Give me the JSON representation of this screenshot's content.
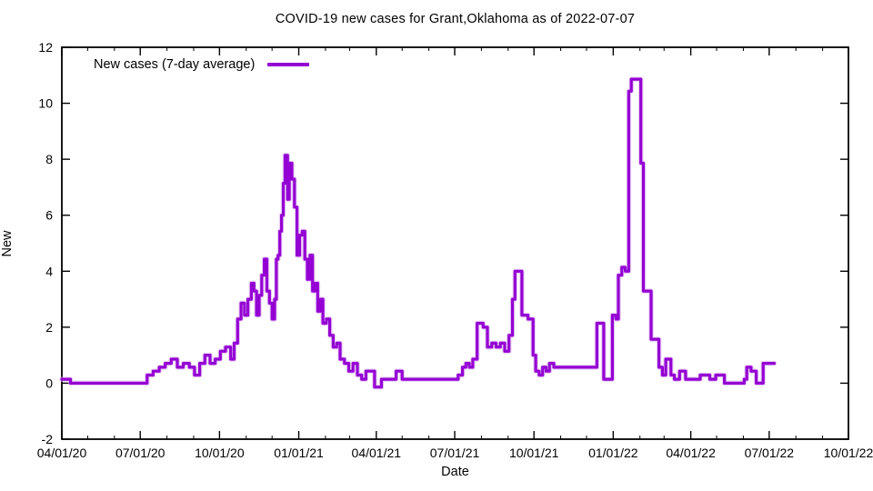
{
  "chart_data": {
    "type": "line",
    "line_style": "steps",
    "title": "COVID-19 new cases for Grant,Oklahoma as of 2022-07-07",
    "xlabel": "Date",
    "ylabel": "New",
    "ylim": [
      -2,
      12
    ],
    "y_ticks": [
      -2,
      0,
      2,
      4,
      6,
      8,
      10,
      12
    ],
    "x_range": [
      "2020-04-01",
      "2022-10-01"
    ],
    "x_ticks": [
      {
        "date": "2020-04-01",
        "label": "04/01/20"
      },
      {
        "date": "2020-07-01",
        "label": "07/01/20"
      },
      {
        "date": "2020-10-01",
        "label": "10/01/20"
      },
      {
        "date": "2021-01-01",
        "label": "01/01/21"
      },
      {
        "date": "2021-04-01",
        "label": "04/01/21"
      },
      {
        "date": "2021-07-01",
        "label": "07/01/21"
      },
      {
        "date": "2021-10-01",
        "label": "10/01/21"
      },
      {
        "date": "2022-01-01",
        "label": "01/01/22"
      },
      {
        "date": "2022-04-01",
        "label": "04/01/22"
      },
      {
        "date": "2022-07-01",
        "label": "07/01/22"
      },
      {
        "date": "2022-10-01",
        "label": "10/01/22"
      }
    ],
    "minor_tick_interval": "month",
    "grid": false,
    "legend_position": "top-left-inside",
    "colors": {
      "line": "#9400d3",
      "line_halo": "#dcaef0",
      "border": "#000000",
      "background": "#ffffff",
      "text": "#000000"
    },
    "series": [
      {
        "name": "New cases (7-day average)",
        "color": "#9400d3",
        "points": [
          [
            "2020-04-01",
            0.14
          ],
          [
            "2020-04-11",
            0.0
          ],
          [
            "2020-07-09",
            0.29
          ],
          [
            "2020-07-16",
            0.43
          ],
          [
            "2020-07-23",
            0.57
          ],
          [
            "2020-07-30",
            0.71
          ],
          [
            "2020-08-06",
            0.86
          ],
          [
            "2020-08-13",
            0.57
          ],
          [
            "2020-08-20",
            0.71
          ],
          [
            "2020-08-27",
            0.57
          ],
          [
            "2020-09-02",
            0.29
          ],
          [
            "2020-09-08",
            0.71
          ],
          [
            "2020-09-14",
            1.0
          ],
          [
            "2020-09-20",
            0.71
          ],
          [
            "2020-09-26",
            0.86
          ],
          [
            "2020-10-02",
            1.14
          ],
          [
            "2020-10-08",
            1.29
          ],
          [
            "2020-10-14",
            0.86
          ],
          [
            "2020-10-18",
            1.43
          ],
          [
            "2020-10-22",
            2.29
          ],
          [
            "2020-10-26",
            2.86
          ],
          [
            "2020-10-30",
            2.43
          ],
          [
            "2020-11-03",
            3.0
          ],
          [
            "2020-11-07",
            3.57
          ],
          [
            "2020-11-10",
            3.29
          ],
          [
            "2020-11-13",
            2.43
          ],
          [
            "2020-11-16",
            3.14
          ],
          [
            "2020-11-19",
            3.86
          ],
          [
            "2020-11-22",
            4.43
          ],
          [
            "2020-11-25",
            3.29
          ],
          [
            "2020-11-28",
            2.86
          ],
          [
            "2020-12-01",
            2.29
          ],
          [
            "2020-12-04",
            3.0
          ],
          [
            "2020-12-06",
            4.43
          ],
          [
            "2020-12-08",
            4.57
          ],
          [
            "2020-12-10",
            5.43
          ],
          [
            "2020-12-12",
            6.0
          ],
          [
            "2020-12-14",
            7.14
          ],
          [
            "2020-12-16",
            8.14
          ],
          [
            "2020-12-19",
            6.57
          ],
          [
            "2020-12-21",
            7.86
          ],
          [
            "2020-12-24",
            7.29
          ],
          [
            "2020-12-27",
            6.29
          ],
          [
            "2020-12-30",
            4.57
          ],
          [
            "2021-01-02",
            5.29
          ],
          [
            "2021-01-05",
            5.43
          ],
          [
            "2021-01-08",
            4.43
          ],
          [
            "2021-01-11",
            3.71
          ],
          [
            "2021-01-14",
            4.57
          ],
          [
            "2021-01-17",
            3.29
          ],
          [
            "2021-01-20",
            3.57
          ],
          [
            "2021-01-23",
            2.57
          ],
          [
            "2021-01-26",
            3.0
          ],
          [
            "2021-01-29",
            2.14
          ],
          [
            "2021-02-02",
            2.29
          ],
          [
            "2021-02-06",
            1.71
          ],
          [
            "2021-02-10",
            1.29
          ],
          [
            "2021-02-14",
            1.43
          ],
          [
            "2021-02-18",
            0.86
          ],
          [
            "2021-02-23",
            0.71
          ],
          [
            "2021-02-28",
            0.43
          ],
          [
            "2021-03-05",
            0.71
          ],
          [
            "2021-03-10",
            0.29
          ],
          [
            "2021-03-15",
            0.14
          ],
          [
            "2021-03-20",
            0.43
          ],
          [
            "2021-03-30",
            -0.14
          ],
          [
            "2021-04-07",
            0.14
          ],
          [
            "2021-04-24",
            0.43
          ],
          [
            "2021-05-01",
            0.14
          ],
          [
            "2021-07-05",
            0.29
          ],
          [
            "2021-07-10",
            0.57
          ],
          [
            "2021-07-14",
            0.71
          ],
          [
            "2021-07-18",
            0.57
          ],
          [
            "2021-07-22",
            0.86
          ],
          [
            "2021-07-27",
            2.14
          ],
          [
            "2021-08-03",
            2.0
          ],
          [
            "2021-08-08",
            1.29
          ],
          [
            "2021-08-13",
            1.43
          ],
          [
            "2021-08-18",
            1.29
          ],
          [
            "2021-08-23",
            1.43
          ],
          [
            "2021-08-28",
            1.14
          ],
          [
            "2021-09-02",
            1.71
          ],
          [
            "2021-09-06",
            3.0
          ],
          [
            "2021-09-09",
            4.0
          ],
          [
            "2021-09-17",
            2.43
          ],
          [
            "2021-09-24",
            2.29
          ],
          [
            "2021-09-30",
            1.0
          ],
          [
            "2021-10-03",
            0.43
          ],
          [
            "2021-10-07",
            0.29
          ],
          [
            "2021-10-11",
            0.57
          ],
          [
            "2021-10-15",
            0.43
          ],
          [
            "2021-10-19",
            0.71
          ],
          [
            "2021-10-24",
            0.57
          ],
          [
            "2021-12-13",
            2.14
          ],
          [
            "2021-12-21",
            0.14
          ],
          [
            "2021-12-31",
            2.43
          ],
          [
            "2022-01-04",
            2.29
          ],
          [
            "2022-01-07",
            3.86
          ],
          [
            "2022-01-11",
            4.14
          ],
          [
            "2022-01-15",
            4.0
          ],
          [
            "2022-01-19",
            10.43
          ],
          [
            "2022-01-22",
            10.86
          ],
          [
            "2022-02-02",
            7.86
          ],
          [
            "2022-02-05",
            3.29
          ],
          [
            "2022-02-14",
            1.57
          ],
          [
            "2022-02-23",
            0.57
          ],
          [
            "2022-02-27",
            0.29
          ],
          [
            "2022-03-03",
            0.86
          ],
          [
            "2022-03-09",
            0.29
          ],
          [
            "2022-03-13",
            0.14
          ],
          [
            "2022-03-19",
            0.43
          ],
          [
            "2022-03-26",
            0.14
          ],
          [
            "2022-04-12",
            0.29
          ],
          [
            "2022-04-23",
            0.14
          ],
          [
            "2022-04-30",
            0.29
          ],
          [
            "2022-05-10",
            0.0
          ],
          [
            "2022-06-02",
            0.14
          ],
          [
            "2022-06-05",
            0.57
          ],
          [
            "2022-06-10",
            0.43
          ],
          [
            "2022-06-16",
            0.0
          ],
          [
            "2022-06-24",
            0.71
          ],
          [
            "2022-07-07",
            0.71
          ]
        ]
      }
    ]
  }
}
